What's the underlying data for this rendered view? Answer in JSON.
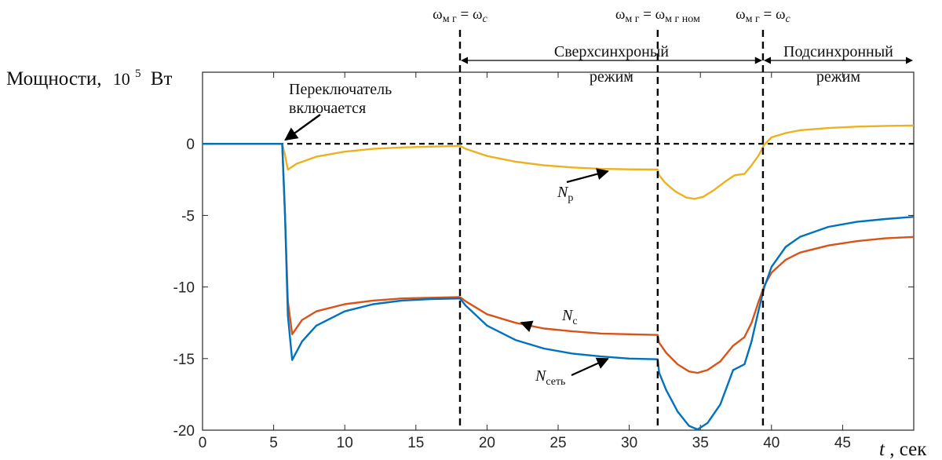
{
  "chart_data": {
    "type": "line",
    "ylabel": "Мощности,",
    "ylabel_unit_base": "10",
    "ylabel_unit_exp": "5",
    "ylabel_unit": "Вт",
    "xlabel_var": "t",
    "xlabel_unit": ", сек",
    "xlim": [
      0,
      50
    ],
    "ylim": [
      -20,
      5
    ],
    "xticks": [
      "0",
      "5",
      "10",
      "15",
      "20",
      "25",
      "30",
      "35",
      "40",
      "45"
    ],
    "yticks": [
      "0",
      "-5",
      "-10",
      "-15",
      "-20"
    ],
    "grid": false,
    "zero_line": true,
    "series": [
      {
        "name_main": "N",
        "name_sub": "р",
        "color": "#EDB120",
        "points": [
          [
            0,
            0
          ],
          [
            5.6,
            0
          ],
          [
            5.8,
            -0.8
          ],
          [
            6.0,
            -1.8
          ],
          [
            6.6,
            -1.4
          ],
          [
            8,
            -0.9
          ],
          [
            10,
            -0.55
          ],
          [
            12,
            -0.35
          ],
          [
            14,
            -0.25
          ],
          [
            16,
            -0.2
          ],
          [
            18.1,
            -0.15
          ],
          [
            18.5,
            -0.35
          ],
          [
            20,
            -0.85
          ],
          [
            22,
            -1.25
          ],
          [
            24,
            -1.5
          ],
          [
            26,
            -1.65
          ],
          [
            28,
            -1.75
          ],
          [
            30,
            -1.78
          ],
          [
            32,
            -1.8
          ],
          [
            32.1,
            -2.2
          ],
          [
            32.5,
            -2.7
          ],
          [
            33.2,
            -3.3
          ],
          [
            34,
            -3.75
          ],
          [
            34.6,
            -3.85
          ],
          [
            35.2,
            -3.7
          ],
          [
            36,
            -3.2
          ],
          [
            36.8,
            -2.6
          ],
          [
            37.4,
            -2.2
          ],
          [
            38.1,
            -2.1
          ],
          [
            38.6,
            -1.5
          ],
          [
            39.1,
            -0.8
          ],
          [
            39.5,
            -0.05
          ],
          [
            40,
            0.45
          ],
          [
            41,
            0.75
          ],
          [
            42,
            0.95
          ],
          [
            44,
            1.1
          ],
          [
            46,
            1.2
          ],
          [
            48,
            1.25
          ],
          [
            50,
            1.28
          ]
        ]
      },
      {
        "name_main": "N",
        "name_sub": "с",
        "color": "#D95319",
        "points": [
          [
            0,
            0
          ],
          [
            5.6,
            0
          ],
          [
            5.8,
            -5
          ],
          [
            6.0,
            -11
          ],
          [
            6.3,
            -13.3
          ],
          [
            7,
            -12.3
          ],
          [
            8,
            -11.7
          ],
          [
            10,
            -11.2
          ],
          [
            12,
            -10.95
          ],
          [
            14,
            -10.8
          ],
          [
            16,
            -10.75
          ],
          [
            18.1,
            -10.7
          ],
          [
            18.5,
            -11.0
          ],
          [
            20,
            -11.9
          ],
          [
            22,
            -12.5
          ],
          [
            24,
            -12.9
          ],
          [
            26,
            -13.1
          ],
          [
            28,
            -13.25
          ],
          [
            30,
            -13.3
          ],
          [
            32,
            -13.35
          ],
          [
            32.1,
            -13.9
          ],
          [
            32.6,
            -14.6
          ],
          [
            33.4,
            -15.4
          ],
          [
            34.2,
            -15.9
          ],
          [
            34.8,
            -16.0
          ],
          [
            35.5,
            -15.8
          ],
          [
            36.4,
            -15.2
          ],
          [
            37.3,
            -14.1
          ],
          [
            38.1,
            -13.5
          ],
          [
            38.6,
            -12.5
          ],
          [
            39.1,
            -11.0
          ],
          [
            39.5,
            -9.9
          ],
          [
            40,
            -9.0
          ],
          [
            41,
            -8.1
          ],
          [
            42,
            -7.6
          ],
          [
            44,
            -7.1
          ],
          [
            46,
            -6.8
          ],
          [
            48,
            -6.6
          ],
          [
            50,
            -6.5
          ]
        ]
      },
      {
        "name_main": "N",
        "name_sub": "сеть",
        "color": "#0072BD",
        "points": [
          [
            0,
            0
          ],
          [
            5.6,
            0
          ],
          [
            5.8,
            -5
          ],
          [
            6.0,
            -12
          ],
          [
            6.3,
            -15.1
          ],
          [
            7,
            -13.8
          ],
          [
            8,
            -12.7
          ],
          [
            10,
            -11.7
          ],
          [
            12,
            -11.2
          ],
          [
            14,
            -10.95
          ],
          [
            16,
            -10.85
          ],
          [
            18.1,
            -10.8
          ],
          [
            18.5,
            -11.3
          ],
          [
            20,
            -12.7
          ],
          [
            22,
            -13.7
          ],
          [
            24,
            -14.3
          ],
          [
            26,
            -14.65
          ],
          [
            28,
            -14.85
          ],
          [
            30,
            -15.0
          ],
          [
            32,
            -15.05
          ],
          [
            32.1,
            -16.0
          ],
          [
            32.6,
            -17.2
          ],
          [
            33.4,
            -18.7
          ],
          [
            34.2,
            -19.7
          ],
          [
            34.8,
            -19.95
          ],
          [
            35.5,
            -19.5
          ],
          [
            36.4,
            -18.2
          ],
          [
            37.3,
            -15.8
          ],
          [
            38.1,
            -15.4
          ],
          [
            38.6,
            -13.8
          ],
          [
            39.1,
            -11.6
          ],
          [
            39.5,
            -10.0
          ],
          [
            40,
            -8.6
          ],
          [
            41,
            -7.2
          ],
          [
            42,
            -6.5
          ],
          [
            44,
            -5.8
          ],
          [
            46,
            -5.45
          ],
          [
            48,
            -5.25
          ],
          [
            50,
            -5.1
          ]
        ]
      }
    ],
    "vlines": [
      18.1,
      32,
      39.4
    ],
    "top_labels": [
      {
        "x": 18.1,
        "left_main": "ω",
        "left_sub": "м г",
        "right_main": "ω",
        "right_sub": "c",
        "right_sub_italic": true
      },
      {
        "x": 32,
        "left_main": "ω",
        "left_sub": "м г",
        "right_main": "ω",
        "right_sub": "м г ном",
        "right_sub_italic": false
      },
      {
        "x": 39.4,
        "left_main": "ω",
        "left_sub": "м г",
        "right_main": "ω",
        "right_sub": "c",
        "right_sub_italic": true
      }
    ],
    "regions": [
      {
        "x1": 18.1,
        "x2": 39.4,
        "line1": "Сверхсинхроный",
        "line2": "режим"
      },
      {
        "x1": 39.4,
        "x2": 50,
        "line1": "Подсинхронный",
        "line2": "режим"
      }
    ],
    "annotations": {
      "switch_line1": "Переключатель",
      "switch_line2": "включается",
      "switch_point": [
        5.6,
        0
      ]
    },
    "series_arrows": [
      {
        "series": 0,
        "tip": [
          28.5,
          -1.75
        ]
      },
      {
        "series": 1,
        "tip": [
          22.4,
          -12.6
        ]
      },
      {
        "series": 2,
        "tip": [
          28.5,
          -14.85
        ]
      }
    ]
  }
}
